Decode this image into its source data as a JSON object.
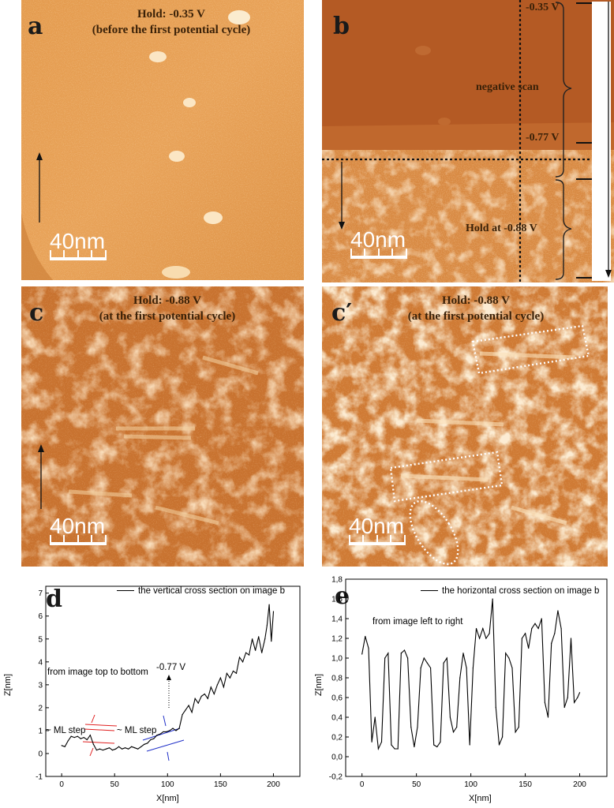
{
  "panel_a": {
    "label": "a",
    "title_line1": "Hold: -0.35 V",
    "title_line2": "(before the first potential cycle)",
    "scale": "40nm"
  },
  "panel_b": {
    "label": "b",
    "v_top": "-0.35 V",
    "sweep": "negative scan",
    "v_mid": "-0.77 V",
    "hold": "Hold at -0.88 V",
    "scale": "40nm"
  },
  "panel_c": {
    "label": "c",
    "title_line1": "Hold: -0.88 V",
    "title_line2": "(at the first potential cycle)",
    "scale": "40nm"
  },
  "panel_c2": {
    "label": "c′",
    "title_line1": "Hold: -0.88 V",
    "title_line2": "(at the first potential cycle)",
    "scale": "40nm"
  },
  "chart_data": [
    {
      "type": "line",
      "panel_label": "d",
      "legend": "the vertical cross section on image b",
      "note": "from image top to bottom",
      "annotations": {
        "ml_step_1": "~ ML step",
        "ml_step_2": "~ ML step",
        "voltage": "-0.77 V"
      },
      "xlabel": "X[nm]",
      "ylabel": "Z[nm]",
      "xlim": [
        -15,
        225
      ],
      "ylim": [
        -1,
        7.3
      ],
      "x_ticks": [
        "0",
        "50",
        "100",
        "150",
        "200"
      ],
      "y_ticks": [
        "-1",
        "0",
        "1",
        "2",
        "3",
        "4",
        "5",
        "6",
        "7"
      ],
      "x": [
        0,
        3,
        6,
        9,
        12,
        15,
        18,
        21,
        24,
        27,
        30,
        33,
        36,
        39,
        42,
        45,
        48,
        51,
        54,
        57,
        60,
        63,
        66,
        69,
        72,
        75,
        78,
        81,
        84,
        87,
        90,
        93,
        96,
        99,
        102,
        105,
        108,
        111,
        114,
        117,
        120,
        123,
        126,
        129,
        132,
        135,
        138,
        141,
        144,
        147,
        150,
        153,
        156,
        159,
        162,
        165,
        168,
        171,
        174,
        177,
        180,
        183,
        186,
        189,
        192,
        194,
        196,
        198,
        200
      ],
      "y": [
        0.35,
        0.3,
        0.55,
        0.75,
        0.7,
        0.75,
        0.65,
        0.7,
        0.6,
        0.8,
        0.4,
        0.15,
        0.2,
        0.15,
        0.2,
        0.25,
        0.15,
        0.2,
        0.3,
        0.2,
        0.25,
        0.2,
        0.3,
        0.25,
        0.2,
        0.3,
        0.4,
        0.45,
        0.6,
        0.65,
        0.8,
        0.85,
        0.95,
        0.95,
        1.0,
        1.1,
        1.0,
        1.1,
        1.7,
        1.9,
        2.1,
        1.8,
        2.4,
        2.2,
        2.5,
        2.6,
        2.4,
        2.9,
        2.6,
        3.0,
        3.3,
        2.9,
        3.5,
        3.3,
        3.6,
        3.5,
        4.2,
        4.0,
        4.4,
        4.3,
        5.0,
        4.5,
        5.1,
        4.4,
        5.0,
        5.6,
        6.5,
        4.9,
        6.2
      ]
    },
    {
      "type": "line",
      "panel_label": "e",
      "legend": "the horizontal cross section on image b",
      "note": "from image left to right",
      "xlabel": "X[nm]",
      "ylabel": "Z[nm]",
      "xlim": [
        -15,
        225
      ],
      "ylim": [
        -0.2,
        1.8
      ],
      "x_ticks": [
        "0",
        "50",
        "100",
        "150",
        "200"
      ],
      "y_ticks": [
        "-0,2",
        "0,0",
        "0,2",
        "0,4",
        "0,6",
        "0,8",
        "1,0",
        "1,2",
        "1,4",
        "1,6",
        "1,8"
      ],
      "x": [
        0,
        3,
        6,
        9,
        12,
        15,
        18,
        21,
        24,
        27,
        30,
        33,
        36,
        39,
        42,
        45,
        48,
        51,
        54,
        57,
        60,
        63,
        66,
        69,
        72,
        75,
        78,
        81,
        84,
        87,
        90,
        93,
        96,
        99,
        102,
        105,
        108,
        111,
        114,
        117,
        120,
        123,
        126,
        129,
        132,
        135,
        138,
        141,
        144,
        147,
        150,
        153,
        156,
        159,
        162,
        165,
        168,
        171,
        174,
        177,
        180,
        183,
        186,
        189,
        192,
        195,
        198,
        200
      ],
      "y": [
        1.04,
        1.22,
        1.1,
        0.15,
        0.4,
        0.08,
        0.15,
        1.0,
        1.05,
        0.12,
        0.08,
        0.08,
        1.05,
        1.08,
        1.0,
        0.3,
        0.1,
        0.3,
        0.9,
        1.0,
        0.95,
        0.9,
        0.12,
        0.1,
        0.15,
        0.95,
        1.0,
        0.4,
        0.25,
        0.3,
        0.8,
        1.05,
        0.9,
        0.12,
        0.9,
        1.3,
        1.2,
        1.3,
        1.2,
        1.25,
        1.6,
        0.5,
        0.12,
        0.2,
        1.05,
        1.0,
        0.9,
        0.25,
        0.3,
        1.2,
        1.25,
        1.1,
        1.3,
        1.35,
        1.3,
        1.4,
        0.55,
        0.4,
        1.15,
        1.25,
        1.48,
        1.3,
        0.5,
        0.6,
        1.2,
        0.55,
        0.6,
        0.65
      ]
    }
  ]
}
